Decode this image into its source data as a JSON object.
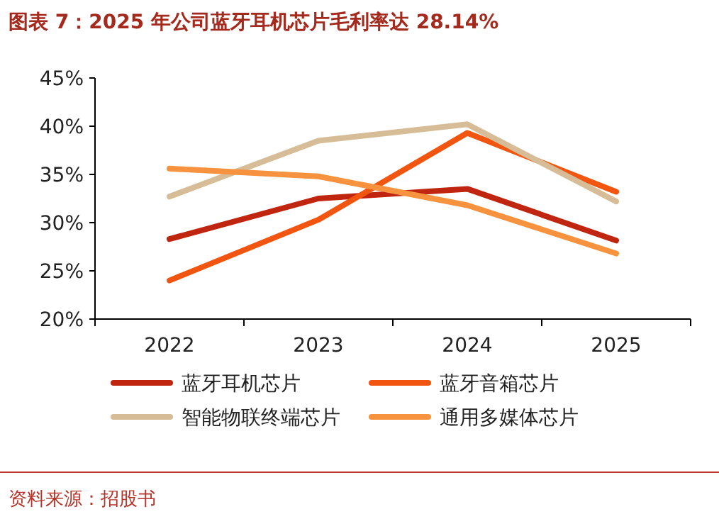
{
  "chart_data": {
    "type": "line",
    "title": "图表 7：2025 年公司蓝牙耳机芯片毛利率达 28.14%",
    "categories": [
      "2022",
      "2023",
      "2024",
      "2025"
    ],
    "series": [
      {
        "name": "蓝牙耳机芯片",
        "color": "#c0250f",
        "values": [
          28.3,
          32.5,
          33.5,
          28.14
        ]
      },
      {
        "name": "蓝牙音箱芯片",
        "color": "#f2550f",
        "values": [
          24.0,
          30.3,
          39.3,
          33.2
        ]
      },
      {
        "name": "智能物联终端芯片",
        "color": "#d6bd98",
        "values": [
          32.7,
          38.5,
          40.2,
          32.2
        ]
      },
      {
        "name": "通用多媒体芯片",
        "color": "#f7923f",
        "values": [
          35.6,
          34.8,
          31.8,
          26.8
        ]
      }
    ],
    "ylim": [
      20,
      45
    ],
    "yticks": [
      {
        "value": 20,
        "label": "20%"
      },
      {
        "value": 25,
        "label": "25%"
      },
      {
        "value": 30,
        "label": "30%"
      },
      {
        "value": 35,
        "label": "35%"
      },
      {
        "value": 40,
        "label": "40%"
      },
      {
        "value": 45,
        "label": "45%"
      }
    ],
    "legend": "bottom",
    "grid": false,
    "marker": "none",
    "line_style": "solid",
    "annotations": [
      "资料来源：招股书"
    ]
  }
}
